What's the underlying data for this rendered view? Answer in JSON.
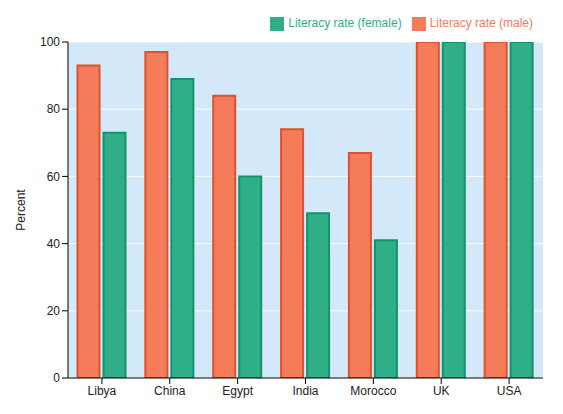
{
  "chart_data": {
    "type": "bar",
    "y_label": "Percent",
    "categories": [
      "Libya",
      "China",
      "Egypt",
      "India",
      "Morocco",
      "UK",
      "USA"
    ],
    "series": [
      {
        "name": "Literacy rate (male)",
        "color": "#f47c5a",
        "values": [
          93,
          97,
          84,
          74,
          67,
          100,
          100
        ]
      },
      {
        "name": "Literacy rate (female)",
        "color": "#2fae88",
        "values": [
          73,
          89,
          60,
          49,
          41,
          100,
          100
        ]
      }
    ],
    "ylim": [
      0,
      100
    ],
    "yticks": [
      0,
      20,
      40,
      60,
      80,
      100
    ],
    "grid": true,
    "legend": "top right"
  }
}
